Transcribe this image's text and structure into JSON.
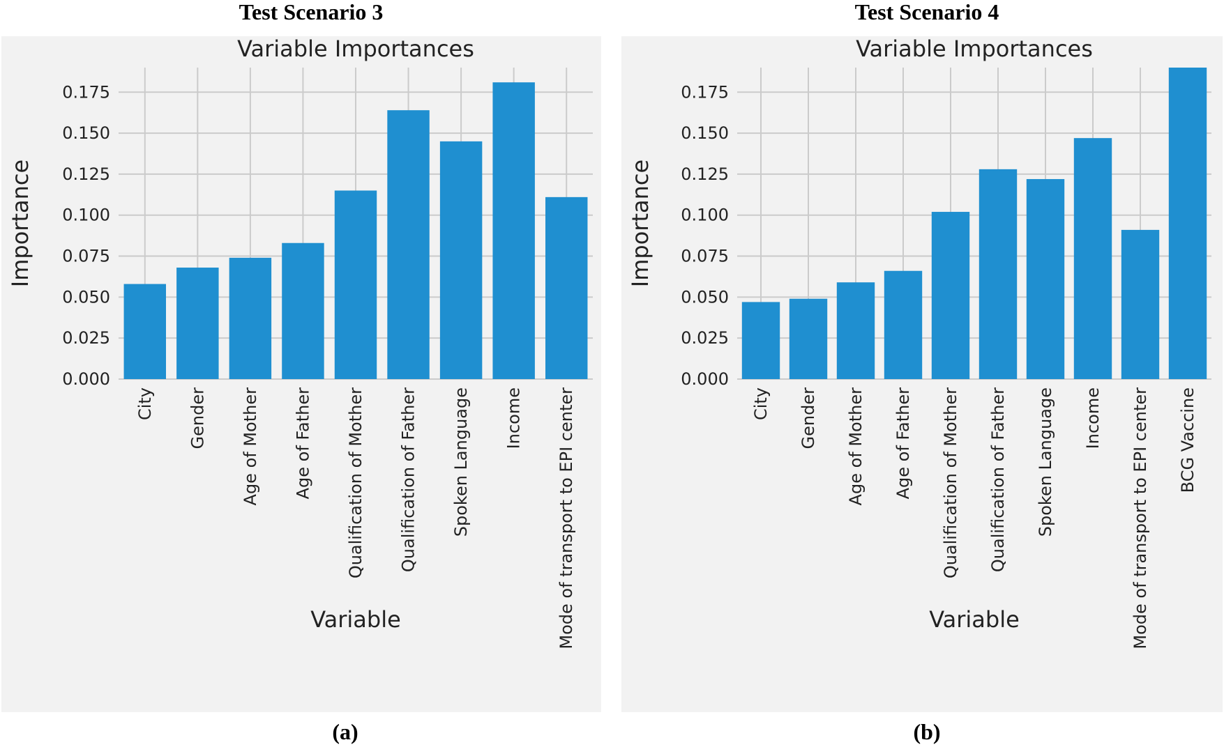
{
  "figure": {
    "left": {
      "scenario_title": "Test Scenario 3",
      "caption": "(a)"
    },
    "right": {
      "scenario_title": "Test Scenario 4",
      "caption": "(b)"
    }
  },
  "colors": {
    "bar": "#1f8fd0",
    "background": "#f2f2f2",
    "grid": "#cbcbcb"
  },
  "chart_data": [
    {
      "type": "bar",
      "title": "Variable Importances",
      "xlabel": "Variable",
      "ylabel": "Importance",
      "ylim": [
        0,
        0.19
      ],
      "yticks": [
        "0.000",
        "0.025",
        "0.050",
        "0.075",
        "0.100",
        "0.125",
        "0.150",
        "0.175"
      ],
      "grid": true,
      "categories": [
        "City",
        "Gender",
        "Age of Mother",
        "Age of Father",
        "Qualification of Mother",
        "Qualification of Father",
        "Spoken Language",
        "Income",
        "Mode of transport to EPI center"
      ],
      "values": [
        0.058,
        0.068,
        0.074,
        0.083,
        0.115,
        0.164,
        0.145,
        0.181,
        0.111
      ]
    },
    {
      "type": "bar",
      "title": "Variable Importances",
      "xlabel": "Variable",
      "ylabel": "Importance",
      "ylim": [
        0,
        0.19
      ],
      "yticks": [
        "0.000",
        "0.025",
        "0.050",
        "0.075",
        "0.100",
        "0.125",
        "0.150",
        "0.175"
      ],
      "grid": true,
      "categories": [
        "City",
        "Gender",
        "Age of Mother",
        "Age of Father",
        "Qualification of Mother",
        "Qualification of Father",
        "Spoken Language",
        "Income",
        "Mode of transport to EPI center",
        "BCG Vaccine"
      ],
      "values": [
        0.047,
        0.049,
        0.059,
        0.066,
        0.102,
        0.128,
        0.122,
        0.147,
        0.091,
        0.19
      ]
    }
  ]
}
